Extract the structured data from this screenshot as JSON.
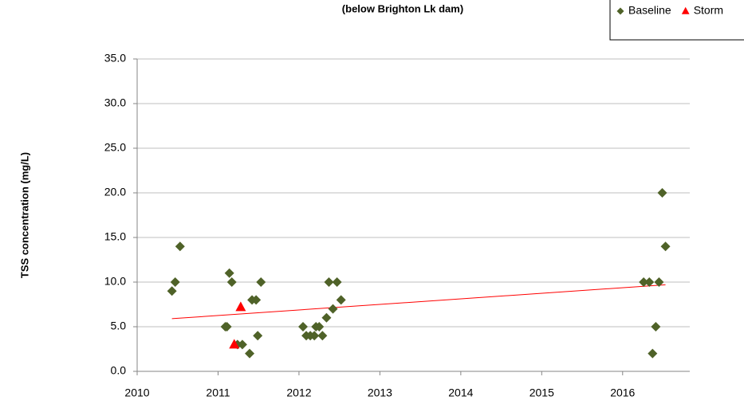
{
  "chart_data": {
    "type": "scatter",
    "subtitle": "(below Brighton Lk dam)",
    "y_label": "TSS concentration (mg/L)",
    "series": [
      {
        "name": "Baseline",
        "color": "#4f6228",
        "marker": "diamond",
        "x": [
          2010.43,
          2010.47,
          2010.53,
          2011.09,
          2011.11,
          2011.14,
          2011.17,
          2011.24,
          2011.3,
          2011.39,
          2011.42,
          2011.47,
          2011.49,
          2011.53,
          2012.05,
          2012.09,
          2012.14,
          2012.19,
          2012.21,
          2012.25,
          2012.29,
          2012.34,
          2012.37,
          2012.42,
          2012.47,
          2012.52,
          2016.26,
          2016.33,
          2016.37,
          2016.41,
          2016.45,
          2016.49,
          2016.53
        ],
        "values": [
          9,
          10,
          14,
          5,
          5,
          11,
          10,
          3,
          3,
          2,
          8,
          8,
          4,
          10,
          5,
          4,
          4,
          4,
          5,
          5,
          4,
          6,
          10,
          7,
          10,
          8,
          10,
          10,
          2,
          5,
          10,
          20,
          14
        ]
      },
      {
        "name": "Storm",
        "color": "#ff0000",
        "marker": "triangle",
        "x": [
          2011.2,
          2011.28
        ],
        "values": [
          3,
          7.2
        ]
      }
    ],
    "trendline": {
      "color": "#ff0000",
      "x": [
        2010.43,
        2016.53
      ],
      "values": [
        5.9,
        9.7
      ]
    },
    "xlim": [
      2010,
      2016.83
    ],
    "ylim": [
      0,
      35
    ],
    "xticks": [
      2010,
      2011,
      2012,
      2013,
      2014,
      2015,
      2016
    ],
    "yticks": [
      {
        "value": 0,
        "label": "0.0"
      },
      {
        "value": 5,
        "label": "5.0"
      },
      {
        "value": 10,
        "label": "10.0"
      },
      {
        "value": 15,
        "label": "15.0"
      },
      {
        "value": 20,
        "label": "20.0"
      },
      {
        "value": 25,
        "label": "25.0"
      },
      {
        "value": 30,
        "label": "30.0"
      },
      {
        "value": 35,
        "label": "35.0"
      }
    ],
    "grid": true,
    "legend": "top-right"
  }
}
